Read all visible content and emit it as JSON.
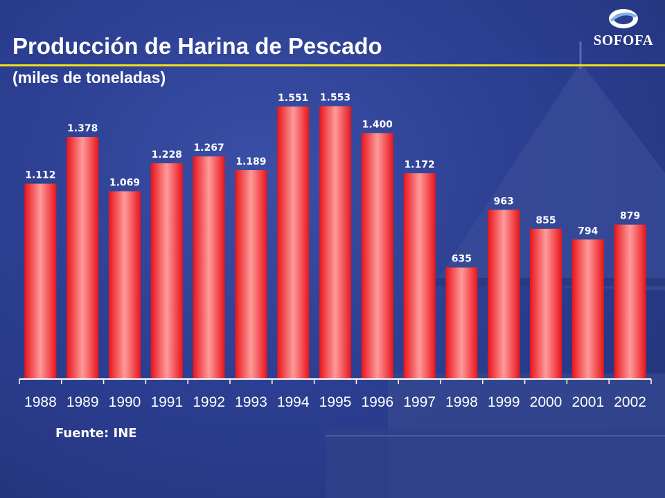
{
  "slide": {
    "title": "Producción de Harina de Pescado",
    "subtitle": "(miles de toneladas)",
    "source": "Fuente: INE",
    "logo_text": "SOFOFA"
  },
  "colors": {
    "background": "#2c3f92",
    "bar": "#ff5555",
    "title_rule": "#f3e01a",
    "text": "#ffffff"
  },
  "chart_data": {
    "type": "bar",
    "title": "Producción de Harina de Pescado",
    "subtitle": "(miles de toneladas)",
    "categories": [
      "1988",
      "1989",
      "1990",
      "1991",
      "1992",
      "1993",
      "1994",
      "1995",
      "1996",
      "1997",
      "1998",
      "1999",
      "2000",
      "2001",
      "2002"
    ],
    "values": [
      1112,
      1378,
      1069,
      1228,
      1267,
      1189,
      1551,
      1553,
      1400,
      1172,
      635,
      963,
      855,
      794,
      879
    ],
    "value_labels": [
      "1.112",
      "1.378",
      "1.069",
      "1.228",
      "1.267",
      "1.189",
      "1.551",
      "1.553",
      "1.400",
      "1.172",
      "635",
      "963",
      "855",
      "794",
      "879"
    ],
    "ylim": [
      0,
      1800
    ],
    "grid": false,
    "legend": "none"
  }
}
